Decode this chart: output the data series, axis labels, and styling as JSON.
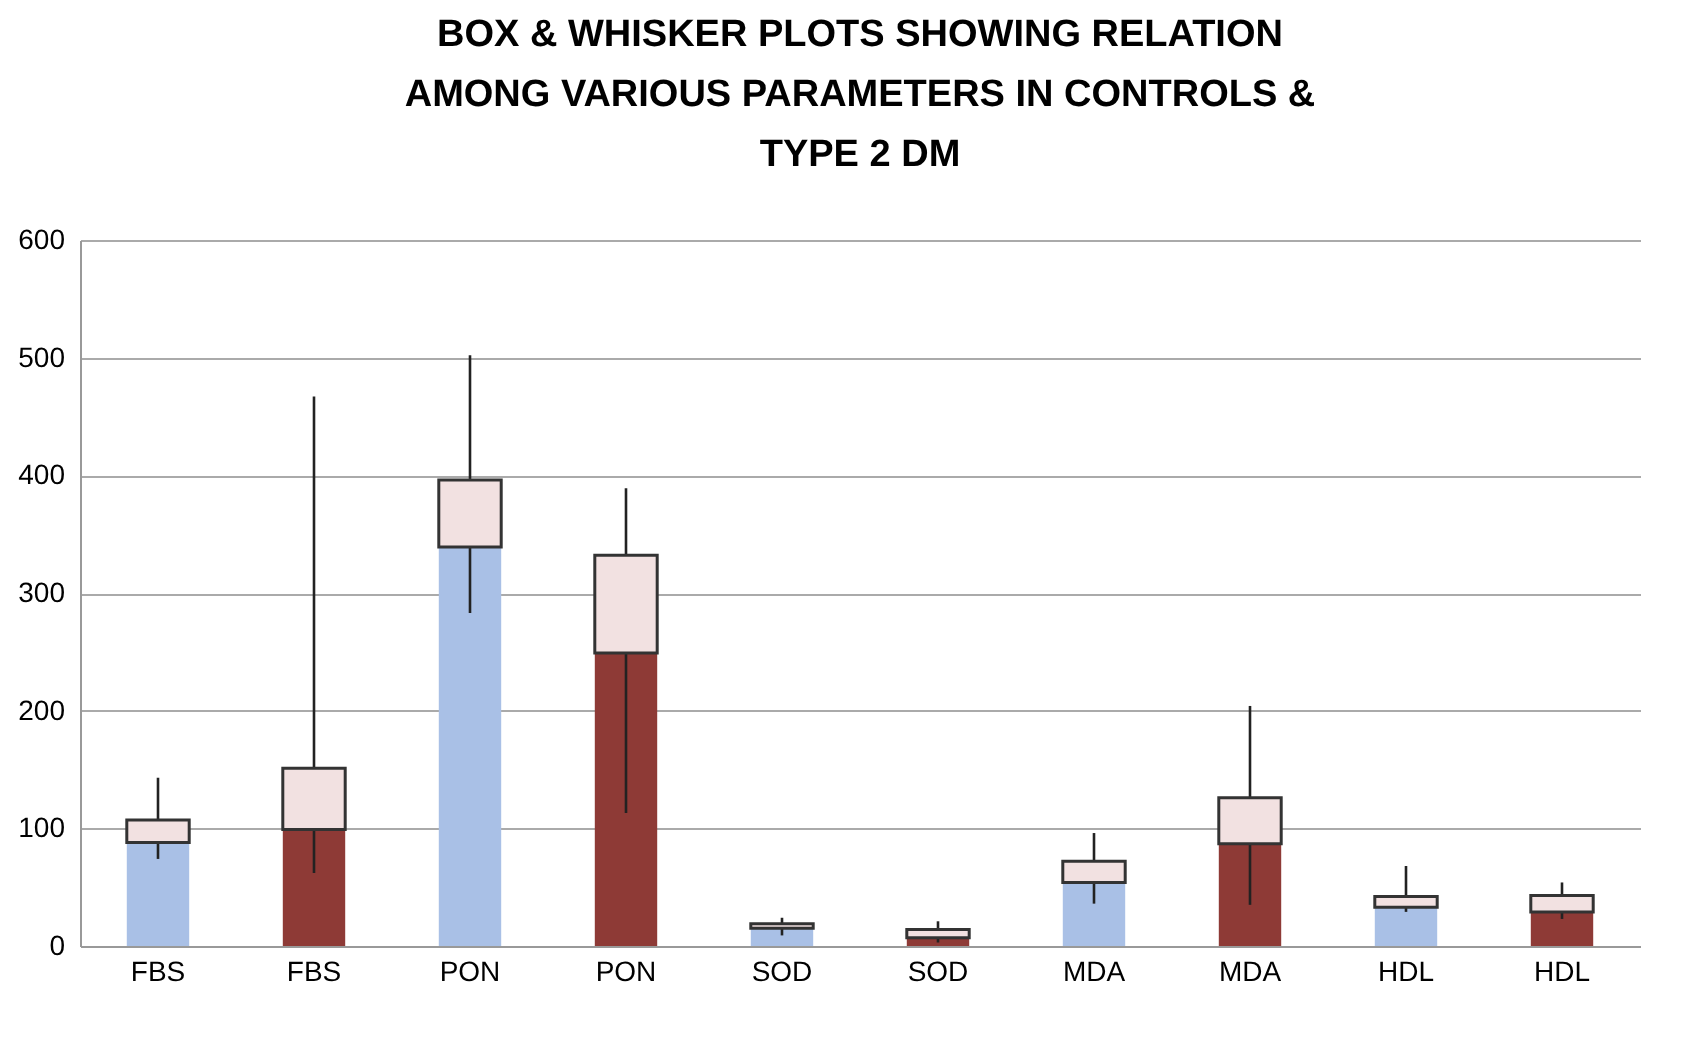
{
  "chart_data": {
    "type": "bar",
    "title": [
      "BOX & WHISKER PLOTS SHOWING RELATION",
      "AMONG VARIOUS PARAMETERS IN CONTROLS &",
      "TYPE 2 DM"
    ],
    "categories": [
      "FBS",
      "FBS",
      "PON",
      "PON",
      "SOD",
      "SOD",
      "MDA",
      "MDA",
      "HDL",
      "HDL"
    ],
    "stacked": true,
    "series": [
      {
        "colors": [
          "#a9c0e6",
          "#8e3a36",
          "#a9c0e6",
          "#8e3a36",
          "#a9c0e6",
          "#8e3a36",
          "#a9c0e6",
          "#8e3a36",
          "#a9c0e6",
          "#8e3a36"
        ],
        "values": [
          88,
          99,
          339,
          249,
          15,
          7,
          54,
          87,
          33,
          29
        ],
        "errors": [
          [
            74,
            143
          ],
          [
            62,
            467
          ],
          [
            283,
            502
          ],
          [
            113,
            389
          ],
          [
            9,
            24
          ],
          [
            3,
            21
          ],
          [
            36,
            96
          ],
          [
            35,
            204
          ],
          [
            29,
            68
          ],
          [
            23,
            54
          ]
        ]
      },
      {
        "color": "#f2e1e1",
        "values": [
          19,
          52,
          57,
          83,
          4,
          7,
          18,
          39,
          9,
          14
        ]
      }
    ],
    "ylim": [
      0,
      600
    ],
    "yticks": [
      0,
      100,
      200,
      300,
      400,
      500,
      600
    ],
    "grid": "y"
  }
}
